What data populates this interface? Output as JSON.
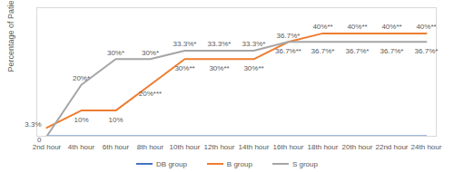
{
  "chart_data": {
    "type": "line",
    "y_label": "Percentage of Patients",
    "categories": [
      "2nd hour",
      "4th hour",
      "6th hour",
      "8th hour",
      "10th hour",
      "12th hour",
      "14th hour",
      "16th hour",
      "18th hour",
      "20th hour",
      "22nd hour",
      "24th hour"
    ],
    "ylim": [
      0,
      50
    ],
    "tick_labels": "x",
    "legend": "bottom",
    "data_labels": true,
    "series": [
      {
        "name": "DB group",
        "color": "#4472c4",
        "values": [
          0,
          0,
          0,
          0,
          0,
          0,
          0,
          0,
          0,
          0,
          0,
          0
        ],
        "value_labels": [
          null,
          null,
          null,
          null,
          null,
          null,
          null,
          null,
          null,
          null,
          null,
          null
        ]
      },
      {
        "name": "B group",
        "color": "#ed7d31",
        "values": [
          3.3,
          10,
          10,
          20,
          30,
          30,
          30,
          36.7,
          40,
          40,
          40,
          40
        ],
        "value_labels": [
          "3.3%",
          "10%",
          "10%",
          "20%***",
          "30%**",
          "30%**",
          "30%**",
          "36.7%**",
          "40%**",
          "40%**",
          "40%**",
          "40%**"
        ]
      },
      {
        "name": "S group",
        "color": "#a5a5a5",
        "values": [
          0,
          20,
          30,
          30,
          33.3,
          33.3,
          33.3,
          36.7,
          36.7,
          36.7,
          36.7,
          36.7
        ],
        "value_labels": [
          "0",
          "20%*",
          "30%*",
          "30%*",
          "33.3%*",
          "33.3%*",
          "33.3%*",
          "36.7%*",
          "36.7%*",
          "36.7%*",
          "36.7%*",
          "36.7%*"
        ]
      }
    ]
  }
}
